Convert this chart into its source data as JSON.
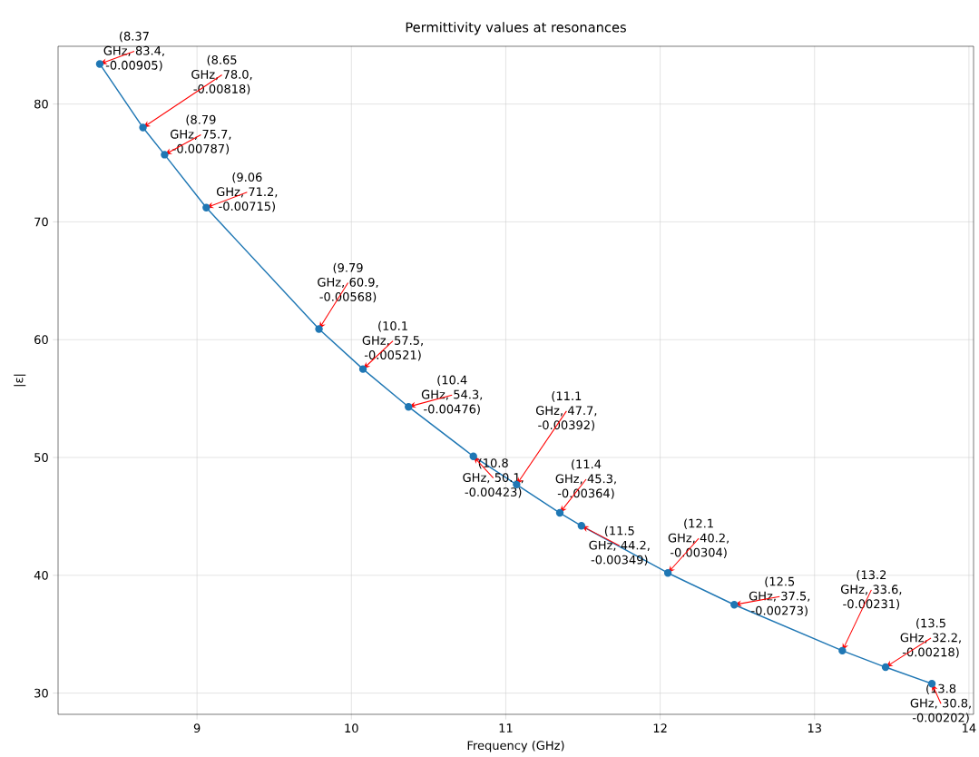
{
  "chart_data": {
    "type": "line",
    "title": "Permittivity values at resonances",
    "xlabel": "Frequency (GHz)",
    "ylabel": "|ε|",
    "x": [
      8.37,
      8.65,
      8.79,
      9.06,
      9.79,
      10.075,
      10.37,
      10.79,
      11.07,
      11.35,
      11.49,
      12.05,
      12.48,
      13.18,
      13.46,
      13.76
    ],
    "series": [
      {
        "color": "#1f77b4",
        "values": [
          83.4,
          78.0,
          75.7,
          71.2,
          60.9,
          57.5,
          54.3,
          50.1,
          47.7,
          45.3,
          44.2,
          40.2,
          37.5,
          33.6,
          32.2,
          30.8
        ]
      }
    ],
    "xlim": [
      8.1,
      14.03
    ],
    "ylim": [
      28.2,
      84.9
    ],
    "xticks": [
      9,
      10,
      11,
      12,
      13,
      14
    ],
    "yticks": [
      30,
      40,
      50,
      60,
      70,
      80
    ],
    "grid": true,
    "marker": "circle",
    "line_style": "solid",
    "annotations": [
      {
        "text": "(8.37 GHz, 83.4, -0.00905)",
        "x": 8.37,
        "y": 83.4
      },
      {
        "text": "(8.65 GHz, 78.0, -0.00818)",
        "x": 8.65,
        "y": 78.0
      },
      {
        "text": "(8.79 GHz, 75.7, -0.00787)",
        "x": 8.79,
        "y": 75.7
      },
      {
        "text": "(9.06 GHz, 71.2, -0.00715)",
        "x": 9.06,
        "y": 71.2
      },
      {
        "text": "(9.79 GHz, 60.9, -0.00568)",
        "x": 9.79,
        "y": 60.9
      },
      {
        "text": "(10.1 GHz, 57.5, -0.00521)",
        "x": 10.075,
        "y": 57.5
      },
      {
        "text": "(10.4 GHz, 54.3, -0.00476)",
        "x": 10.37,
        "y": 54.3
      },
      {
        "text": "(10.8 GHz, 50.1, -0.00423)",
        "x": 10.79,
        "y": 50.1
      },
      {
        "text": "(11.1 GHz, 47.7, -0.00392)",
        "x": 11.07,
        "y": 47.7
      },
      {
        "text": "(11.4 GHz, 45.3, -0.00364)",
        "x": 11.35,
        "y": 45.3
      },
      {
        "text": "(11.5 GHz, 44.2, -0.00349)",
        "x": 11.49,
        "y": 44.2
      },
      {
        "text": "(12.1 GHz, 40.2, -0.00304)",
        "x": 12.05,
        "y": 40.2
      },
      {
        "text": "(12.5 GHz, 37.5, -0.00273)",
        "x": 12.48,
        "y": 37.5
      },
      {
        "text": "(13.2 GHz, 33.6, -0.00231)",
        "x": 13.18,
        "y": 33.6
      },
      {
        "text": "(13.5 GHz, 32.2, -0.00218)",
        "x": 13.46,
        "y": 32.2
      },
      {
        "text": "(13.8 GHz, 30.8, -0.00202)",
        "x": 13.76,
        "y": 30.8
      }
    ]
  }
}
